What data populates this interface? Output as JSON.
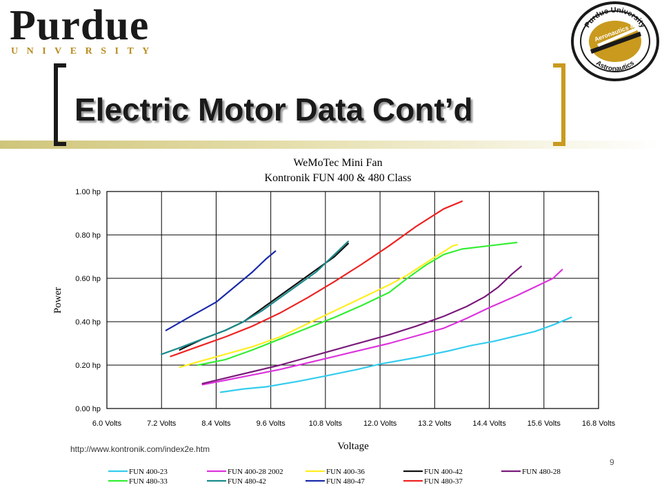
{
  "header": {
    "logo_main": "Purdue",
    "logo_sub": "UNIVERSITY",
    "seal_text_top": "Purdue University",
    "seal_text_mid": "Aeronautics &",
    "seal_text_bottom": "Astronautics"
  },
  "slide": {
    "title": "Electric Motor Data Cont’d",
    "source": "http://www.kontronik.com/index2e.htm",
    "page_number": "9"
  },
  "colors": {
    "accent_gold": "#c99a1e",
    "bracket_dark": "#1a1a1a"
  },
  "chart_data": {
    "type": "line",
    "title": "WeMoTec Mini Fan",
    "subtitle": "Kontronik FUN 400 & 480 Class",
    "xlabel": "Voltage",
    "ylabel": "Power",
    "xlim": [
      6.0,
      16.8
    ],
    "ylim": [
      0.0,
      1.0
    ],
    "x_ticks": [
      "6.0 Volts",
      "7.2 Volts",
      "8.4 Volts",
      "9.6 Volts",
      "10.8 Volts",
      "12.0 Volts",
      "13.2 Volts",
      "14.4 Volts",
      "15.6 Volts",
      "16.8 Volts"
    ],
    "y_ticks": [
      "0.00 hp",
      "0.20 hp",
      "0.40 hp",
      "0.60 hp",
      "0.80 hp",
      "1.00 hp"
    ],
    "grid": true,
    "legend_position": "bottom",
    "series": [
      {
        "name": "FUN 400-23",
        "color": "#33ccee",
        "points": [
          [
            8.5,
            0.075
          ],
          [
            9.0,
            0.09
          ],
          [
            9.5,
            0.1
          ],
          [
            10.2,
            0.125
          ],
          [
            10.8,
            0.15
          ],
          [
            11.5,
            0.18
          ],
          [
            12.0,
            0.205
          ],
          [
            12.8,
            0.235
          ],
          [
            13.5,
            0.265
          ],
          [
            14.0,
            0.29
          ],
          [
            14.5,
            0.31
          ],
          [
            15.0,
            0.335
          ],
          [
            15.4,
            0.355
          ],
          [
            15.8,
            0.385
          ],
          [
            16.2,
            0.42
          ]
        ]
      },
      {
        "name": "FUN 400-28 2002",
        "color": "#dd33dd",
        "points": [
          [
            8.1,
            0.11
          ],
          [
            8.6,
            0.13
          ],
          [
            9.2,
            0.155
          ],
          [
            9.8,
            0.18
          ],
          [
            10.4,
            0.21
          ],
          [
            11.0,
            0.24
          ],
          [
            11.6,
            0.27
          ],
          [
            12.2,
            0.3
          ],
          [
            12.8,
            0.335
          ],
          [
            13.4,
            0.37
          ],
          [
            13.9,
            0.415
          ],
          [
            14.4,
            0.465
          ],
          [
            15.0,
            0.52
          ],
          [
            15.5,
            0.57
          ],
          [
            15.8,
            0.6
          ],
          [
            16.0,
            0.64
          ]
        ]
      },
      {
        "name": "FUN 400-36",
        "color": "#ffee22",
        "points": [
          [
            7.6,
            0.19
          ],
          [
            8.0,
            0.215
          ],
          [
            8.6,
            0.25
          ],
          [
            9.2,
            0.285
          ],
          [
            9.8,
            0.33
          ],
          [
            10.4,
            0.39
          ],
          [
            11.0,
            0.45
          ],
          [
            11.6,
            0.51
          ],
          [
            12.2,
            0.57
          ],
          [
            12.6,
            0.615
          ],
          [
            13.0,
            0.67
          ],
          [
            13.3,
            0.71
          ],
          [
            13.6,
            0.75
          ],
          [
            13.7,
            0.755
          ]
        ]
      },
      {
        "name": "FUN 400-42",
        "color": "#111111",
        "points": [
          [
            7.6,
            0.27
          ],
          [
            8.1,
            0.32
          ],
          [
            8.6,
            0.36
          ],
          [
            9.0,
            0.4
          ],
          [
            9.4,
            0.46
          ],
          [
            9.8,
            0.52
          ],
          [
            10.2,
            0.58
          ],
          [
            10.6,
            0.64
          ],
          [
            11.0,
            0.7
          ],
          [
            11.3,
            0.76
          ]
        ]
      },
      {
        "name": "FUN 480-28",
        "color": "#7a1a7a",
        "points": [
          [
            8.1,
            0.115
          ],
          [
            8.6,
            0.14
          ],
          [
            9.2,
            0.17
          ],
          [
            9.8,
            0.2
          ],
          [
            10.4,
            0.235
          ],
          [
            11.0,
            0.27
          ],
          [
            11.6,
            0.305
          ],
          [
            12.2,
            0.34
          ],
          [
            12.8,
            0.38
          ],
          [
            13.4,
            0.425
          ],
          [
            13.9,
            0.47
          ],
          [
            14.3,
            0.515
          ],
          [
            14.6,
            0.56
          ],
          [
            14.9,
            0.62
          ],
          [
            15.1,
            0.655
          ]
        ]
      },
      {
        "name": "FUN 480-33",
        "color": "#33ee33",
        "points": [
          [
            8.0,
            0.2
          ],
          [
            8.6,
            0.225
          ],
          [
            9.2,
            0.27
          ],
          [
            9.8,
            0.32
          ],
          [
            10.4,
            0.37
          ],
          [
            11.0,
            0.42
          ],
          [
            11.6,
            0.475
          ],
          [
            12.2,
            0.535
          ],
          [
            12.6,
            0.6
          ],
          [
            13.0,
            0.66
          ],
          [
            13.4,
            0.71
          ],
          [
            13.8,
            0.735
          ],
          [
            14.2,
            0.745
          ],
          [
            14.6,
            0.755
          ],
          [
            15.0,
            0.765
          ]
        ]
      },
      {
        "name": "FUN 480-42",
        "color": "#1a8a8a",
        "points": [
          [
            7.2,
            0.25
          ],
          [
            7.6,
            0.28
          ],
          [
            8.1,
            0.32
          ],
          [
            8.6,
            0.36
          ],
          [
            9.0,
            0.4
          ],
          [
            9.4,
            0.45
          ],
          [
            9.8,
            0.51
          ],
          [
            10.2,
            0.57
          ],
          [
            10.6,
            0.63
          ],
          [
            11.0,
            0.71
          ],
          [
            11.3,
            0.77
          ]
        ]
      },
      {
        "name": "FUN 480-47",
        "color": "#1a2aaa",
        "points": [
          [
            7.3,
            0.36
          ],
          [
            7.8,
            0.42
          ],
          [
            8.1,
            0.455
          ],
          [
            8.4,
            0.49
          ],
          [
            8.8,
            0.56
          ],
          [
            9.2,
            0.63
          ],
          [
            9.5,
            0.69
          ],
          [
            9.7,
            0.725
          ]
        ]
      },
      {
        "name": "FUN 480-37",
        "color": "#ee2222",
        "points": [
          [
            7.4,
            0.24
          ],
          [
            8.0,
            0.285
          ],
          [
            8.6,
            0.33
          ],
          [
            9.2,
            0.38
          ],
          [
            9.8,
            0.44
          ],
          [
            10.4,
            0.51
          ],
          [
            11.0,
            0.585
          ],
          [
            11.6,
            0.665
          ],
          [
            12.2,
            0.75
          ],
          [
            12.8,
            0.84
          ],
          [
            13.4,
            0.92
          ],
          [
            13.8,
            0.955
          ]
        ]
      }
    ]
  }
}
